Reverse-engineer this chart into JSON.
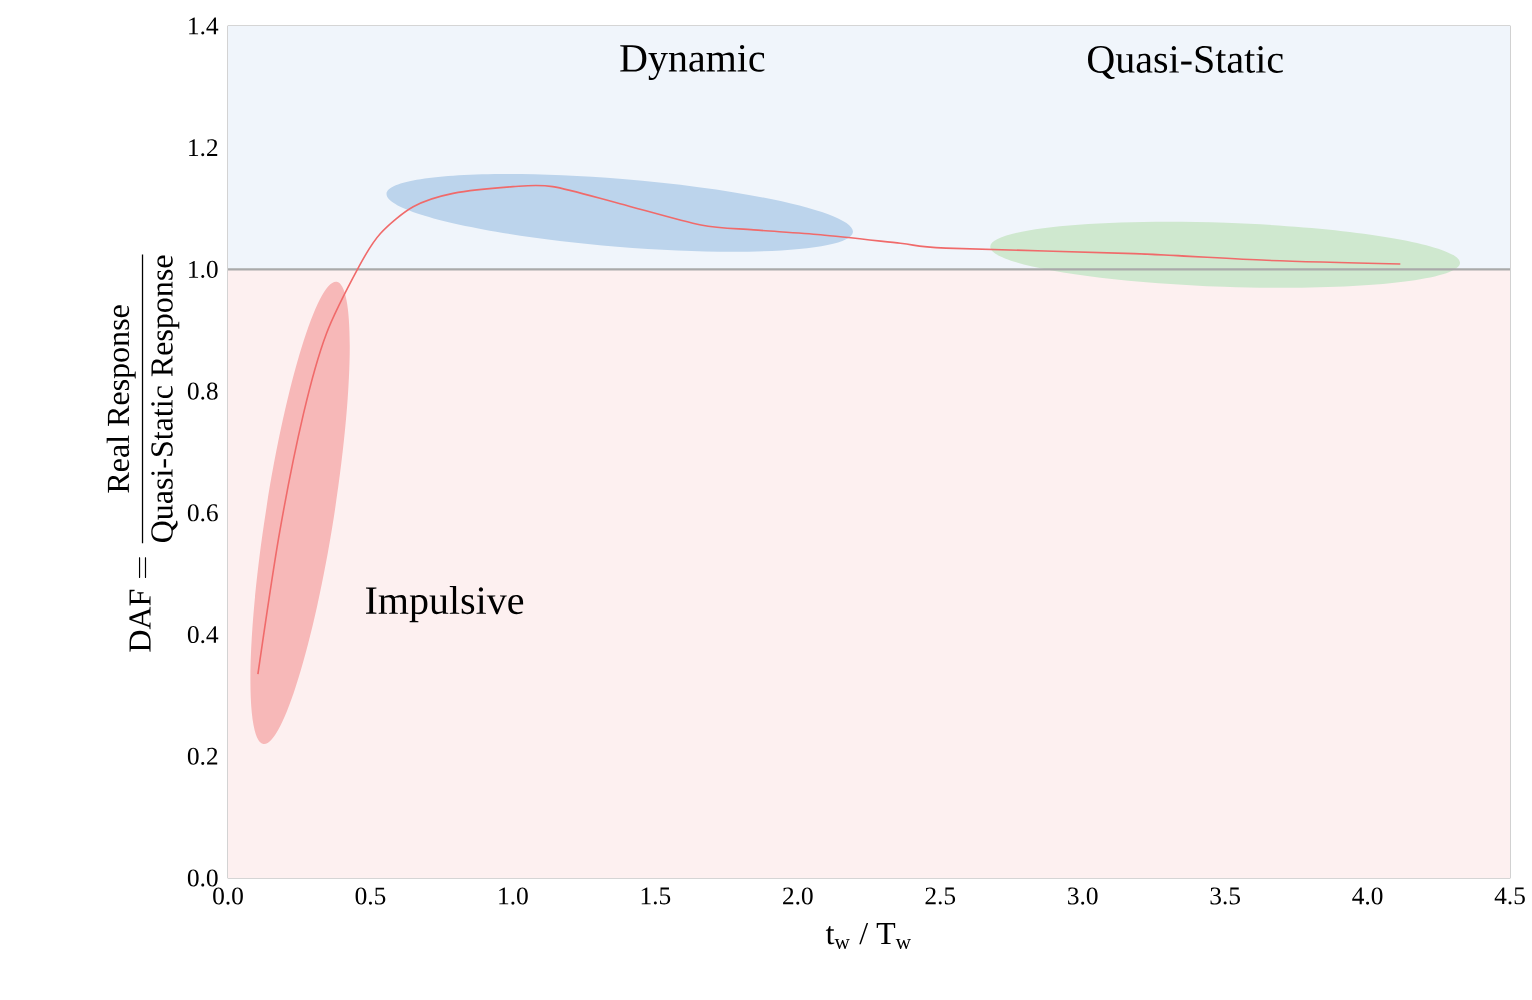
{
  "chart_data": {
    "type": "line",
    "ylabel": "\\text{DAF} = \\frac{\\text{Real Response}}{\\text{Quasi-Static Response}}",
    "xlabel": "t$_{w}$ / T$_{w}$",
    "x": [
      0.105,
      0.18,
      0.265,
      0.345,
      0.46,
      0.535,
      0.65,
      0.79,
      1.0,
      1.14,
      1.376,
      1.66,
      1.845,
      2.08,
      2.36,
      2.52,
      3.18,
      3.645,
      4.115
    ],
    "series": [
      {
        "color": "#f06a6a",
        "values": [
          0.335,
          0.565,
          0.763,
          0.894,
          1.005,
          1.059,
          1.103,
          1.125,
          1.136,
          1.136,
          1.108,
          1.073,
          1.065,
          1.057,
          1.043,
          1.035,
          1.026,
          1.015,
          1.009
        ]
      }
    ],
    "xlim": [
      0,
      4.5
    ],
    "ylim": [
      0,
      1.4
    ],
    "xticks": [
      {
        "value": 0,
        "label": "0.0"
      },
      0.5,
      {
        "value": 1,
        "label": "1.0"
      },
      1.5,
      {
        "value": 2,
        "label": "2.0"
      },
      2.5,
      {
        "value": 3,
        "label": "3.0"
      },
      3.5,
      {
        "value": 4,
        "label": "4.0"
      },
      4.5
    ],
    "yticks": [
      {
        "value": 0,
        "label": "0.0"
      },
      0.2,
      0.4,
      0.6,
      0.8,
      {
        "value": 1,
        "label": "1.0"
      },
      1.2,
      1.4
    ],
    "bands": [
      {
        "axis": "y",
        "from": 0,
        "to": 1,
        "color": "#fdf0f0"
      },
      {
        "axis": "y",
        "from": 1,
        "to": 1.4,
        "color": "#f0f5fb"
      }
    ],
    "ref_lines": [
      {
        "axis": "y",
        "value": 1,
        "color": "#aaaaaa"
      }
    ],
    "annotations": [
      "Impulsive",
      "Dynamic",
      "Quasi-Static"
    ],
    "grid": true,
    "marker": "none",
    "line_style": "solid"
  }
}
